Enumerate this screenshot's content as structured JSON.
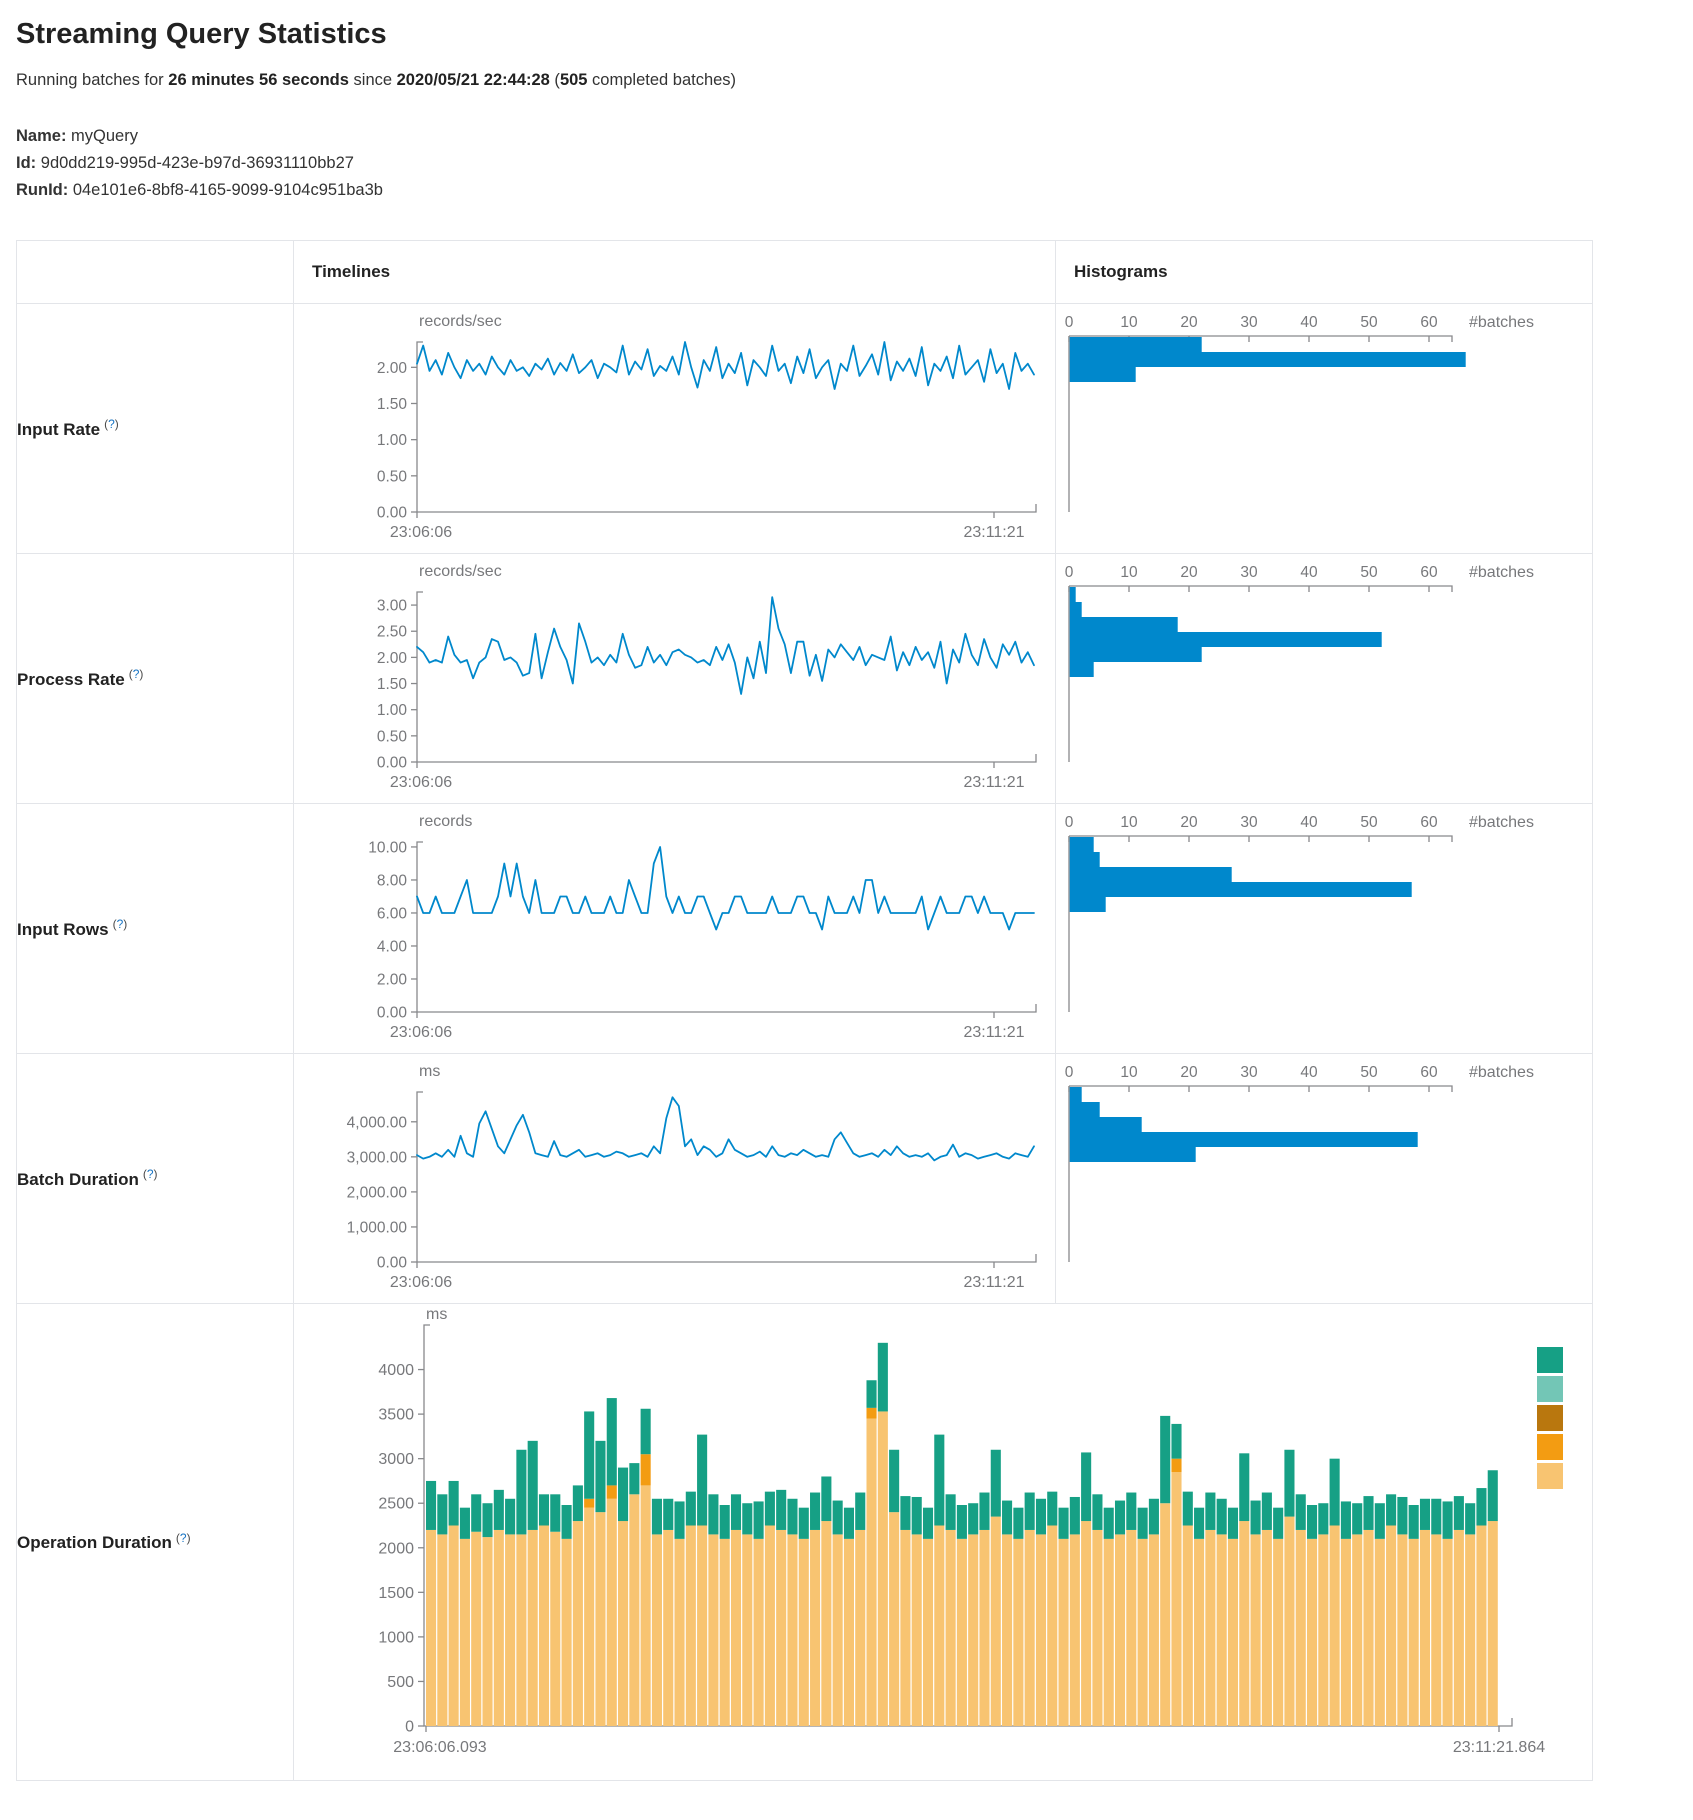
{
  "page": {
    "title": "Streaming Query Statistics",
    "subtitle": {
      "prefix": "Running batches for ",
      "duration": "26 minutes 56 seconds",
      "mid": " since ",
      "since": "2020/05/21 22:44:28",
      "paren_open": " (",
      "batches": "505",
      "paren_close": " completed batches)"
    },
    "meta": [
      {
        "label": "Name:",
        "value": "myQuery"
      },
      {
        "label": "Id:",
        "value": "9d0dd219-995d-423e-b97d-36931110bb27"
      },
      {
        "label": "RunId:",
        "value": "04e101e6-8bf8-4165-9099-9104c951ba3b"
      }
    ]
  },
  "table": {
    "headers": {
      "timelines": "Timelines",
      "histograms": "Histograms"
    }
  },
  "help": {
    "open": "(",
    "mark": "?",
    "close": ")"
  },
  "rows": [
    {
      "label": "Input Rate"
    },
    {
      "label": "Process Rate"
    },
    {
      "label": "Input Rows"
    },
    {
      "label": "Batch Duration"
    },
    {
      "label": "Operation Duration"
    }
  ],
  "colors": {
    "line": "#0088cc",
    "bar": "#0088cc",
    "axis": "#88898c",
    "tick_text": "#77787b",
    "legend": [
      "#16A085",
      "#73C6B6",
      "#B9770E",
      "#F39C12",
      "#F8C471"
    ]
  },
  "chart_data": [
    {
      "type": "line",
      "name": "input-rate-timeline",
      "unit": "records/sec",
      "x_start": "23:06:06",
      "x_end": "23:11:21",
      "ylim": [
        0,
        2.35
      ],
      "ytick_values": [
        0,
        0.5,
        1,
        1.5,
        2
      ],
      "ytick_labels": [
        "0.00",
        "0.50",
        "1.00",
        "1.50",
        "2.00"
      ],
      "grid": false,
      "values": [
        2.05,
        2.3,
        1.95,
        2.1,
        1.9,
        2.2,
        2.0,
        1.85,
        2.1,
        1.95,
        2.05,
        1.9,
        2.15,
        2.0,
        1.9,
        2.1,
        1.95,
        2.0,
        1.88,
        2.05,
        1.97,
        2.12,
        1.9,
        2.06,
        1.95,
        2.18,
        1.92,
        2.0,
        2.1,
        1.85,
        2.05,
        2.0,
        1.93,
        2.3,
        1.9,
        2.08,
        1.97,
        2.25,
        1.88,
        2.02,
        1.95,
        2.15,
        1.9,
        2.35,
        2.0,
        1.72,
        2.1,
        1.95,
        2.28,
        1.85,
        2.05,
        1.92,
        2.2,
        1.75,
        2.1,
        2.0,
        1.88,
        2.3,
        1.95,
        2.05,
        1.78,
        2.15,
        1.92,
        2.25,
        1.85,
        2.0,
        2.1,
        1.7,
        2.05,
        1.95,
        2.3,
        1.88,
        2.02,
        2.18,
        1.9,
        2.35,
        1.82,
        2.08,
        1.95,
        2.12,
        1.88,
        2.28,
        1.75,
        2.05,
        1.95,
        2.15,
        1.85,
        2.3,
        1.9,
        2.0,
        2.1,
        1.8,
        2.25,
        1.92,
        2.05,
        1.7,
        2.2,
        1.95,
        2.05,
        1.9
      ]
    },
    {
      "type": "bar",
      "name": "input-rate-histogram",
      "orientation": "horizontal",
      "xlabel": "#batches",
      "xtick_values": [
        0,
        10,
        20,
        30,
        40,
        50,
        60
      ],
      "values": [
        22,
        66,
        11
      ]
    },
    {
      "type": "line",
      "name": "process-rate-timeline",
      "unit": "records/sec",
      "x_start": "23:06:06",
      "x_end": "23:11:21",
      "ylim": [
        0,
        3.25
      ],
      "ytick_values": [
        0,
        0.5,
        1,
        1.5,
        2,
        2.5,
        3
      ],
      "ytick_labels": [
        "0.00",
        "0.50",
        "1.00",
        "1.50",
        "2.00",
        "2.50",
        "3.00"
      ],
      "grid": false,
      "values": [
        2.2,
        2.1,
        1.9,
        1.95,
        1.9,
        2.4,
        2.05,
        1.9,
        1.95,
        1.6,
        1.9,
        2.0,
        2.35,
        2.3,
        1.95,
        2.0,
        1.9,
        1.65,
        1.7,
        2.45,
        1.6,
        2.1,
        2.55,
        2.2,
        1.95,
        1.5,
        2.65,
        2.3,
        1.9,
        2.0,
        1.85,
        2.05,
        1.9,
        2.45,
        2.05,
        1.8,
        1.85,
        2.2,
        1.9,
        2.05,
        1.85,
        2.1,
        2.15,
        2.05,
        2.0,
        1.9,
        1.95,
        1.85,
        2.2,
        1.95,
        2.25,
        1.9,
        1.3,
        2.0,
        1.6,
        2.3,
        1.7,
        3.15,
        2.55,
        2.25,
        1.7,
        2.3,
        2.3,
        1.65,
        2.05,
        1.55,
        2.15,
        2.0,
        2.25,
        2.1,
        1.95,
        2.2,
        1.85,
        2.05,
        2.0,
        1.95,
        2.4,
        1.75,
        2.1,
        1.85,
        2.2,
        1.95,
        2.1,
        1.8,
        2.3,
        1.5,
        2.15,
        1.9,
        2.45,
        2.05,
        1.85,
        2.35,
        2.0,
        1.8,
        2.25,
        2.05,
        2.3,
        1.9,
        2.1,
        1.85
      ]
    },
    {
      "type": "bar",
      "name": "process-rate-histogram",
      "orientation": "horizontal",
      "xlabel": "#batches",
      "xtick_values": [
        0,
        10,
        20,
        30,
        40,
        50,
        60
      ],
      "values": [
        1,
        2,
        18,
        52,
        22,
        4
      ]
    },
    {
      "type": "line",
      "name": "input-rows-timeline",
      "unit": "records",
      "x_start": "23:06:06",
      "x_end": "23:11:21",
      "ylim": [
        0,
        10.3
      ],
      "ytick_values": [
        0,
        2,
        4,
        6,
        8,
        10
      ],
      "ytick_labels": [
        "0.00",
        "2.00",
        "4.00",
        "6.00",
        "8.00",
        "10.00"
      ],
      "grid": false,
      "values": [
        7,
        6,
        6,
        7,
        6,
        6,
        6,
        7,
        8,
        6,
        6,
        6,
        6,
        7,
        9,
        7,
        9,
        7,
        6,
        8,
        6,
        6,
        6,
        7,
        7,
        6,
        6,
        7,
        6,
        6,
        6,
        7,
        6,
        6,
        8,
        7,
        6,
        6,
        9,
        10,
        7,
        6,
        7,
        6,
        6,
        7,
        7,
        6,
        5,
        6,
        6,
        7,
        7,
        6,
        6,
        6,
        6,
        7,
        6,
        6,
        6,
        7,
        7,
        6,
        6,
        5,
        7,
        6,
        6,
        6,
        7,
        6,
        8,
        8,
        6,
        7,
        6,
        6,
        6,
        6,
        6,
        7,
        5,
        6,
        7,
        6,
        6,
        6,
        7,
        7,
        6,
        7,
        6,
        6,
        6,
        5,
        6,
        6,
        6,
        6
      ]
    },
    {
      "type": "bar",
      "name": "input-rows-histogram",
      "orientation": "horizontal",
      "xlabel": "#batches",
      "xtick_values": [
        0,
        10,
        20,
        30,
        40,
        50,
        60
      ],
      "values": [
        4,
        5,
        27,
        57,
        6
      ]
    },
    {
      "type": "line",
      "name": "batch-duration-timeline",
      "unit": "ms",
      "x_start": "23:06:06",
      "x_end": "23:11:21",
      "ylim": [
        0,
        4850
      ],
      "ytick_values": [
        0,
        1000,
        2000,
        3000,
        4000
      ],
      "ytick_labels": [
        "0.00",
        "1,000.00",
        "2,000.00",
        "3,000.00",
        "4,000.00"
      ],
      "grid": false,
      "values": [
        3050,
        2950,
        3000,
        3100,
        3000,
        3200,
        3000,
        3600,
        3100,
        3000,
        3950,
        4300,
        3800,
        3300,
        3100,
        3500,
        3900,
        4200,
        3700,
        3100,
        3050,
        3000,
        3450,
        3050,
        3000,
        3100,
        3200,
        3000,
        3050,
        3100,
        3000,
        3050,
        3150,
        3100,
        3000,
        3050,
        3100,
        3000,
        3300,
        3100,
        4100,
        4700,
        4450,
        3300,
        3500,
        3050,
        3300,
        3200,
        3000,
        3100,
        3500,
        3200,
        3100,
        3000,
        3050,
        3150,
        3000,
        3300,
        3050,
        3000,
        3100,
        3050,
        3200,
        3100,
        3000,
        3050,
        3000,
        3500,
        3700,
        3400,
        3100,
        3000,
        3050,
        3100,
        3000,
        3200,
        3050,
        3300,
        3100,
        3000,
        3050,
        3000,
        3100,
        2900,
        3000,
        3050,
        3350,
        3000,
        3100,
        3050,
        2950,
        3000,
        3050,
        3100,
        3000,
        2950,
        3100,
        3050,
        3000,
        3300
      ]
    },
    {
      "type": "bar",
      "name": "batch-duration-histogram",
      "orientation": "horizontal",
      "xlabel": "#batches",
      "xtick_values": [
        0,
        10,
        20,
        30,
        40,
        50,
        60
      ],
      "values": [
        2,
        5,
        12,
        58,
        21
      ]
    },
    {
      "type": "bar",
      "stacked": true,
      "name": "operation-duration",
      "unit": "ms",
      "x_start": "23:06:06.093",
      "x_end": "23:11:21.864",
      "ylim": [
        0,
        4500
      ],
      "ytick_values": [
        0,
        500,
        1000,
        1500,
        2000,
        2500,
        3000,
        3500,
        4000
      ],
      "ytick_labels": [
        "0",
        "500",
        "1000",
        "1500",
        "2000",
        "2500",
        "3000",
        "3500",
        "4000"
      ],
      "legend_colors": [
        "#16A085",
        "#73C6B6",
        "#B9770E",
        "#F39C12",
        "#F8C471"
      ],
      "series": [
        {
          "name": "bottom-segment",
          "color": "#F8C471",
          "values": [
            2200,
            2150,
            2250,
            2100,
            2180,
            2120,
            2200,
            2150,
            2150,
            2200,
            2250,
            2180,
            2100,
            2300,
            2450,
            2400,
            2550,
            2300,
            2600,
            2700,
            2150,
            2200,
            2100,
            2250,
            2250,
            2150,
            2100,
            2200,
            2150,
            2100,
            2250,
            2200,
            2150,
            2100,
            2200,
            2300,
            2150,
            2100,
            2200,
            3450,
            3530,
            2400,
            2200,
            2150,
            2100,
            2250,
            2200,
            2100,
            2150,
            2200,
            2350,
            2150,
            2100,
            2200,
            2150,
            2250,
            2100,
            2150,
            2300,
            2200,
            2100,
            2150,
            2200,
            2100,
            2150,
            2500,
            2850,
            2250,
            2100,
            2200,
            2150,
            2100,
            2300,
            2150,
            2200,
            2100,
            2350,
            2200,
            2100,
            2150,
            2250,
            2100,
            2150,
            2200,
            2100,
            2250,
            2150,
            2100,
            2200,
            2150,
            2100,
            2200,
            2150,
            2250,
            2300
          ]
        },
        {
          "name": "middle-segment",
          "color": "#F39C12",
          "values": [
            0,
            0,
            0,
            0,
            0,
            0,
            0,
            0,
            0,
            0,
            0,
            0,
            0,
            0,
            100,
            0,
            150,
            0,
            0,
            350,
            0,
            0,
            0,
            0,
            0,
            0,
            0,
            0,
            0,
            0,
            0,
            0,
            0,
            0,
            0,
            0,
            0,
            0,
            0,
            120,
            0,
            0,
            0,
            0,
            0,
            0,
            0,
            0,
            0,
            0,
            0,
            0,
            0,
            0,
            0,
            0,
            0,
            0,
            0,
            0,
            0,
            0,
            0,
            0,
            0,
            0,
            150,
            0,
            0,
            0,
            0,
            0,
            0,
            0,
            0,
            0,
            0,
            0,
            0,
            0,
            0,
            0,
            0,
            0,
            0,
            0,
            0,
            0,
            0,
            0,
            0,
            0,
            0,
            0,
            0
          ]
        },
        {
          "name": "top-segment",
          "color": "#16A085",
          "values": [
            550,
            450,
            500,
            350,
            420,
            380,
            450,
            400,
            950,
            1000,
            350,
            420,
            380,
            400,
            980,
            800,
            980,
            600,
            350,
            510,
            400,
            350,
            420,
            380,
            1020,
            450,
            380,
            400,
            350,
            420,
            380,
            450,
            400,
            350,
            420,
            500,
            380,
            350,
            420,
            310,
            770,
            700,
            380,
            420,
            350,
            1020,
            400,
            380,
            350,
            420,
            750,
            380,
            350,
            420,
            400,
            380,
            350,
            420,
            770,
            400,
            350,
            380,
            420,
            350,
            400,
            980,
            390,
            380,
            350,
            420,
            400,
            350,
            760,
            380,
            420,
            350,
            750,
            400,
            380,
            350,
            750,
            420,
            350,
            380,
            400,
            350,
            420,
            380,
            350,
            400,
            420,
            380,
            350,
            420,
            570
          ]
        }
      ]
    }
  ]
}
